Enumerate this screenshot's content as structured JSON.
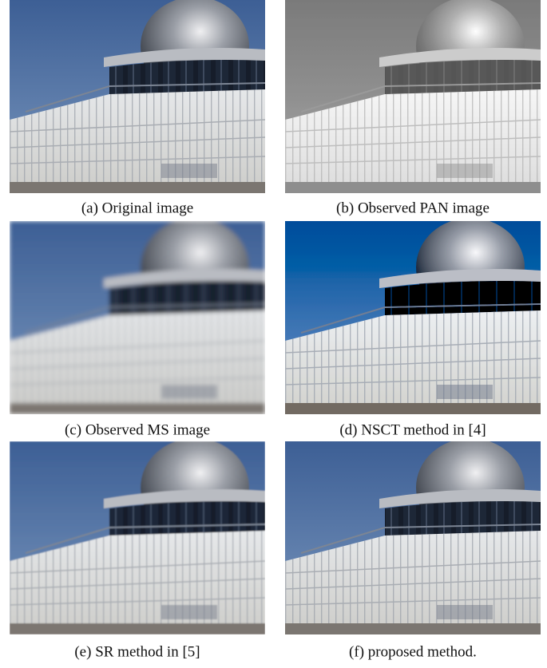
{
  "figure": {
    "panels": [
      {
        "caption": "(a) Original image"
      },
      {
        "caption": "(b) Observed PAN image"
      },
      {
        "caption": "(c) Observed MS image"
      },
      {
        "caption": "(d) NSCT method in [4]"
      },
      {
        "caption": "(e) SR method in [5]"
      },
      {
        "caption": "(f) proposed method."
      }
    ]
  }
}
